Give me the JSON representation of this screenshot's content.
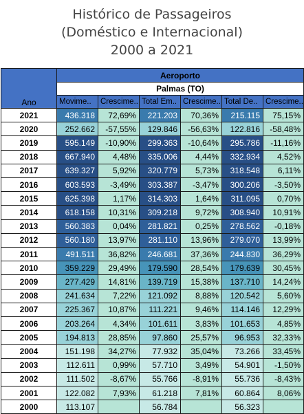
{
  "title": [
    "Histórico de Passageiros",
    "(Doméstico e Internacional)",
    "2000 a 2021"
  ],
  "header": {
    "group": "Aeroporto",
    "airport": "Palmas (TO)",
    "year_label": "Ano",
    "columns": [
      "Movime..",
      "Crescime..",
      "Total Em..",
      "Crescime..",
      "Total De..",
      "Crescime.."
    ]
  },
  "colors": {
    "header_blue": "#4472c4",
    "line_dark": "#1a1a1a",
    "growth_fill": "#b7e4d6",
    "movement_scale": [
      "#c7e9e6",
      "#98d2d8",
      "#6ab5c8",
      "#4794b9",
      "#3a7bad",
      "#2f5f99",
      "#284f86"
    ]
  },
  "chart_data": {
    "type": "table",
    "title": "Histórico de Passageiros (Doméstico e Internacional) 2000 a 2021",
    "columns": [
      "Ano",
      "Movime..",
      "Crescime..",
      "Total Em..",
      "Crescime..",
      "Total De..",
      "Crescime.."
    ],
    "rows": [
      {
        "year": "2021",
        "mov": "436.318",
        "mov_val": 436318,
        "g1": "72,69%",
        "emb": "221.203",
        "emb_val": 221203,
        "g2": "70,36%",
        "des": "215.115",
        "des_val": 215115,
        "g3": "75,15%"
      },
      {
        "year": "2020",
        "mov": "252.662",
        "mov_val": 252662,
        "g1": "-57,55%",
        "emb": "129.846",
        "emb_val": 129846,
        "g2": "-56,63%",
        "des": "122.816",
        "des_val": 122816,
        "g3": "-58,48%"
      },
      {
        "year": "2019",
        "mov": "595.149",
        "mov_val": 595149,
        "g1": "-10,90%",
        "emb": "299.363",
        "emb_val": 299363,
        "g2": "-10,64%",
        "des": "295.786",
        "des_val": 295786,
        "g3": "-11,16%"
      },
      {
        "year": "2018",
        "mov": "667.940",
        "mov_val": 667940,
        "g1": "4,48%",
        "emb": "335.006",
        "emb_val": 335006,
        "g2": "4,44%",
        "des": "332.934",
        "des_val": 332934,
        "g3": "4,52%"
      },
      {
        "year": "2017",
        "mov": "639.327",
        "mov_val": 639327,
        "g1": "5,92%",
        "emb": "320.779",
        "emb_val": 320779,
        "g2": "5,73%",
        "des": "318.548",
        "des_val": 318548,
        "g3": "6,11%"
      },
      {
        "year": "2016",
        "mov": "603.593",
        "mov_val": 603593,
        "g1": "-3,49%",
        "emb": "303.387",
        "emb_val": 303387,
        "g2": "-3,47%",
        "des": "300.206",
        "des_val": 300206,
        "g3": "-3,50%"
      },
      {
        "year": "2015",
        "mov": "625.398",
        "mov_val": 625398,
        "g1": "1,17%",
        "emb": "314.303",
        "emb_val": 314303,
        "g2": "1,64%",
        "des": "311.095",
        "des_val": 311095,
        "g3": "0,70%"
      },
      {
        "year": "2014",
        "mov": "618.158",
        "mov_val": 618158,
        "g1": "10,31%",
        "emb": "309.218",
        "emb_val": 309218,
        "g2": "9,72%",
        "des": "308.940",
        "des_val": 308940,
        "g3": "10,91%"
      },
      {
        "year": "2013",
        "mov": "560.383",
        "mov_val": 560383,
        "g1": "0,04%",
        "emb": "281.821",
        "emb_val": 281821,
        "g2": "0,25%",
        "des": "278.562",
        "des_val": 278562,
        "g3": "-0,18%"
      },
      {
        "year": "2012",
        "mov": "560.180",
        "mov_val": 560180,
        "g1": "13,97%",
        "emb": "281.110",
        "emb_val": 281110,
        "g2": "13,96%",
        "des": "279.070",
        "des_val": 279070,
        "g3": "13,99%"
      },
      {
        "year": "2011",
        "mov": "491.511",
        "mov_val": 491511,
        "g1": "36,82%",
        "emb": "246.681",
        "emb_val": 246681,
        "g2": "37,36%",
        "des": "244.830",
        "des_val": 244830,
        "g3": "36,29%"
      },
      {
        "year": "2010",
        "mov": "359.229",
        "mov_val": 359229,
        "g1": "29,49%",
        "emb": "179.590",
        "emb_val": 179590,
        "g2": "28,54%",
        "des": "179.639",
        "des_val": 179639,
        "g3": "30,45%"
      },
      {
        "year": "2009",
        "mov": "277.429",
        "mov_val": 277429,
        "g1": "14,81%",
        "emb": "139.719",
        "emb_val": 139719,
        "g2": "15,38%",
        "des": "137.710",
        "des_val": 137710,
        "g3": "14,24%"
      },
      {
        "year": "2008",
        "mov": "241.634",
        "mov_val": 241634,
        "g1": "7,22%",
        "emb": "121.092",
        "emb_val": 121092,
        "g2": "8,88%",
        "des": "120.542",
        "des_val": 120542,
        "g3": "5,60%"
      },
      {
        "year": "2007",
        "mov": "225.367",
        "mov_val": 225367,
        "g1": "10,87%",
        "emb": "111.221",
        "emb_val": 111221,
        "g2": "9,46%",
        "des": "114.146",
        "des_val": 114146,
        "g3": "12,29%"
      },
      {
        "year": "2006",
        "mov": "203.264",
        "mov_val": 203264,
        "g1": "4,34%",
        "emb": "101.611",
        "emb_val": 101611,
        "g2": "3,83%",
        "des": "101.653",
        "des_val": 101653,
        "g3": "4,85%"
      },
      {
        "year": "2005",
        "mov": "194.813",
        "mov_val": 194813,
        "g1": "28,85%",
        "emb": "97.860",
        "emb_val": 97860,
        "g2": "25,57%",
        "des": "96.953",
        "des_val": 96953,
        "g3": "32,33%"
      },
      {
        "year": "2004",
        "mov": "151.198",
        "mov_val": 151198,
        "g1": "34,27%",
        "emb": "77.932",
        "emb_val": 77932,
        "g2": "35,04%",
        "des": "73.266",
        "des_val": 73266,
        "g3": "33,45%"
      },
      {
        "year": "2003",
        "mov": "112.611",
        "mov_val": 112611,
        "g1": "0,99%",
        "emb": "57.710",
        "emb_val": 57710,
        "g2": "3,49%",
        "des": "54.901",
        "des_val": 54901,
        "g3": "-1,50%"
      },
      {
        "year": "2002",
        "mov": "111.502",
        "mov_val": 111502,
        "g1": "-8,67%",
        "emb": "55.766",
        "emb_val": 55766,
        "g2": "-8,91%",
        "des": "55.736",
        "des_val": 55736,
        "g3": "-8,43%"
      },
      {
        "year": "2001",
        "mov": "122.082",
        "mov_val": 122082,
        "g1": "7,93%",
        "emb": "61.218",
        "emb_val": 61218,
        "g2": "7,81%",
        "des": "60.864",
        "des_val": 60864,
        "g3": "8,06%"
      },
      {
        "year": "2000",
        "mov": "113.107",
        "mov_val": 113107,
        "g1": "",
        "emb": "56.784",
        "emb_val": 56784,
        "g2": "",
        "des": "56.323",
        "des_val": 56323,
        "g3": ""
      }
    ]
  }
}
